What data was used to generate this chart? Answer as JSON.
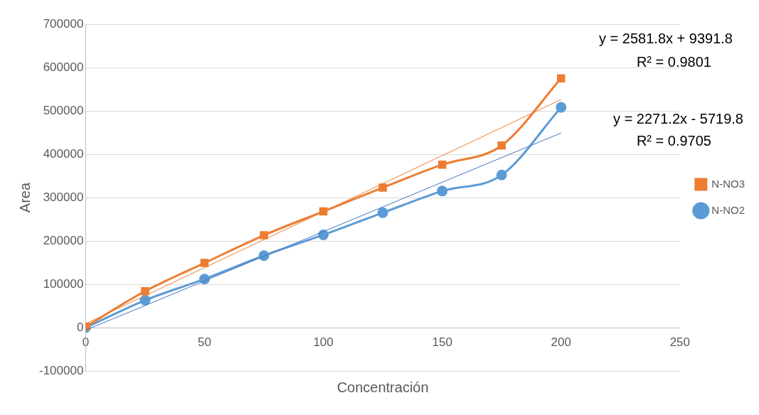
{
  "chart_data": {
    "type": "line",
    "xlabel": "Concentración",
    "ylabel": "Area",
    "xlim": [
      0,
      250
    ],
    "xticks": [
      0,
      50,
      100,
      150,
      200,
      250
    ],
    "ylim": [
      -100000,
      700000
    ],
    "yticks": [
      -100000,
      0,
      100000,
      200000,
      300000,
      400000,
      500000,
      600000,
      700000
    ],
    "grid": "y",
    "legend": "right",
    "series": [
      {
        "name": "N-NO2",
        "color": "#5b9bd5",
        "marker": "circle",
        "x": [
          0,
          25,
          50,
          75,
          100,
          125,
          150,
          175,
          200
        ],
        "values": [
          0,
          63000,
          112000,
          166000,
          214000,
          265000,
          315000,
          352000,
          508000
        ]
      },
      {
        "name": "N-NO3",
        "color": "#ed7d31",
        "marker": "square",
        "x": [
          0,
          25,
          50,
          75,
          100,
          125,
          150,
          175,
          200
        ],
        "values": [
          2000,
          84000,
          149000,
          213000,
          268000,
          323000,
          376000,
          420000,
          575000
        ]
      },
      {
        "type": "line",
        "color": "#4472c4",
        "marker": "none",
        "x": [
          0,
          200
        ],
        "values": [
          -6000,
          449000
        ]
      },
      {
        "type": "line",
        "color": "#ed7d31",
        "marker": "none",
        "x": [
          0,
          200
        ],
        "values": [
          9000,
          526000
        ]
      }
    ],
    "annotations": [
      "y = 2581.8x + 9391.8",
      "R² = 0.9801",
      "y = 2271.2x - 5719.8",
      "R² = 0.9705"
    ]
  }
}
